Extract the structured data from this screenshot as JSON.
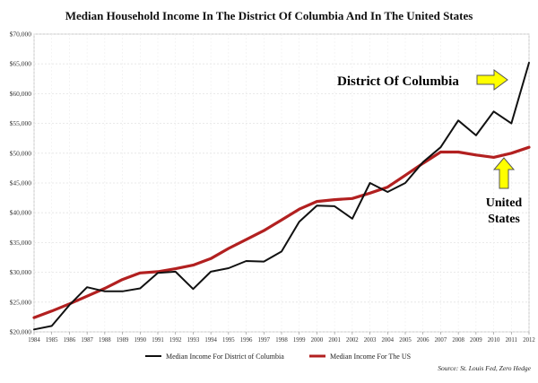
{
  "chart_data": {
    "type": "line",
    "title": "Median Household Income In The District Of Columbia And In The United States",
    "x": [
      "1984",
      "1985",
      "1986",
      "1987",
      "1988",
      "1989",
      "1990",
      "1991",
      "1992",
      "1993",
      "1994",
      "1995",
      "1996",
      "1997",
      "1998",
      "1999",
      "2000",
      "2001",
      "2002",
      "2003",
      "2004",
      "2005",
      "2006",
      "2007",
      "2008",
      "2009",
      "2010",
      "2011",
      "2012"
    ],
    "yticks": [
      "$20,000",
      "$25,000",
      "$30,000",
      "$35,000",
      "$40,000",
      "$45,000",
      "$50,000",
      "$55,000",
      "$60,000",
      "$65,000",
      "$70,000"
    ],
    "ylim": [
      20000,
      70000
    ],
    "grid": true,
    "legend_position": "bottom",
    "series": [
      {
        "name": "Median Income For District of Columbia",
        "color": "#111111",
        "values": [
          20400,
          21000,
          24500,
          27500,
          26800,
          26800,
          27300,
          29900,
          30100,
          27200,
          30100,
          30700,
          31900,
          31800,
          33500,
          38500,
          41200,
          41100,
          39000,
          45000,
          43500,
          45000,
          48500,
          51000,
          55500,
          53000,
          57000,
          55000,
          65200
        ]
      },
      {
        "name": "Median Income For The US",
        "color": "#b22020",
        "values": [
          22400,
          23500,
          24700,
          26000,
          27300,
          28800,
          29900,
          30100,
          30600,
          31200,
          32300,
          34000,
          35500,
          37000,
          38800,
          40600,
          41900,
          42200,
          42400,
          43300,
          44300,
          46300,
          48300,
          50200,
          50200,
          49700,
          49300,
          50000,
          51000
        ]
      }
    ],
    "annotations": [
      {
        "text": "District Of Columbia",
        "arrow": "right"
      },
      {
        "text": "United States",
        "lines": [
          "United",
          "States"
        ],
        "arrow": "up"
      }
    ],
    "source": "Source: St. Louis Fed, Zero Hedge"
  }
}
